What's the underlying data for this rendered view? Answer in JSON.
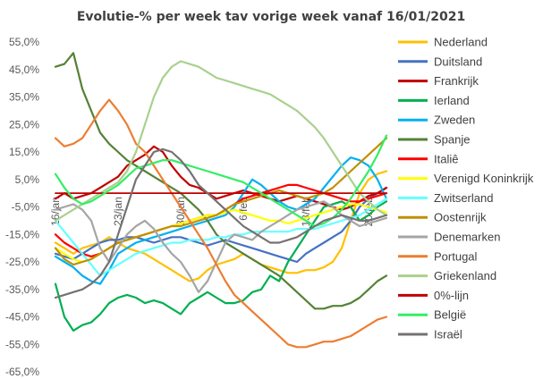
{
  "chart_data": {
    "type": "line",
    "title": "Evolutie-% per week tav vorige week vanaf 16/01/2021",
    "ylim": [
      -65,
      55
    ],
    "y_ticks": [
      55,
      45,
      35,
      25,
      15,
      5,
      -5,
      -15,
      -25,
      -35,
      -45,
      -55,
      -65
    ],
    "y_tick_labels": [
      "55,0%",
      "45,0%",
      "35,0%",
      "25,0%",
      "15,0%",
      "5,0%",
      "-5,0%",
      "-15,0%",
      "-25,0%",
      "-35,0%",
      "-45,0%",
      "-55,0%",
      "-65,0%"
    ],
    "x": [
      "16/jan",
      "17/jan",
      "18/jan",
      "19/jan",
      "20/jan",
      "21/jan",
      "22/jan",
      "23/jan",
      "24/jan",
      "25/jan",
      "26/jan",
      "27/jan",
      "28/jan",
      "29/jan",
      "30/jan",
      "31/jan",
      "01/feb",
      "02/feb",
      "03/feb",
      "04/feb",
      "05/feb",
      "06/feb",
      "07/feb",
      "08/feb",
      "09/feb",
      "10/feb",
      "11/feb",
      "12/feb",
      "13/feb",
      "14/feb",
      "15/feb",
      "16/feb",
      "17/feb",
      "18/feb",
      "19/feb",
      "20/feb",
      "21/feb",
      "22/feb"
    ],
    "x_tick_labels": [
      {
        "index": 0,
        "label": "16/jan"
      },
      {
        "index": 7,
        "label": "23/jan"
      },
      {
        "index": 14,
        "label": "30/jan"
      },
      {
        "index": 21,
        "label": "6/feb"
      },
      {
        "index": 28,
        "label": "13/feb"
      },
      {
        "index": 35,
        "label": "20/feb"
      }
    ],
    "grid": false,
    "legend_position": "right",
    "series": [
      {
        "name": "Nederland",
        "color": "#FFC000",
        "values": [
          -18,
          -20,
          -22,
          -20,
          -19,
          -18,
          -16,
          -18,
          -20,
          -21,
          -22,
          -24,
          -26,
          -28,
          -30,
          -32,
          -31,
          -28,
          -26,
          -25,
          -24,
          -22,
          -24,
          -26,
          -27,
          -28,
          -29,
          -29,
          -28,
          -28,
          -27,
          -25,
          -20,
          -10,
          0,
          5,
          7,
          8
        ]
      },
      {
        "name": "Duitsland",
        "color": "#4472C4",
        "values": [
          -22,
          -23,
          -24,
          -22,
          -20,
          -18,
          -17,
          -17,
          -16,
          -16,
          -17,
          -18,
          -17,
          -16,
          -16,
          -17,
          -18,
          -19,
          -18,
          -17,
          -18,
          -19,
          -20,
          -21,
          -22,
          -23,
          -24,
          -25,
          -22,
          -20,
          -18,
          -16,
          -14,
          -10,
          -5,
          -2,
          0,
          2
        ]
      },
      {
        "name": "Frankrijk",
        "color": "#C00000",
        "values": [
          -2,
          0,
          -2,
          -1,
          0,
          2,
          4,
          6,
          10,
          12,
          14,
          17,
          15,
          10,
          6,
          3,
          2,
          0,
          -2,
          -1,
          0,
          1,
          0,
          -1,
          -2,
          -3,
          -2,
          -1,
          -2,
          -3,
          -4,
          -5,
          -6,
          -5,
          -3,
          -1,
          0,
          2
        ]
      },
      {
        "name": "Ierland",
        "color": "#00B050",
        "values": [
          -33,
          -45,
          -50,
          -48,
          -47,
          -44,
          -40,
          -38,
          -37,
          -38,
          -40,
          -39,
          -40,
          -42,
          -44,
          -40,
          -38,
          -36,
          -38,
          -40,
          -40,
          -39,
          -36,
          -35,
          -30,
          -32,
          -25,
          -20,
          -15,
          -10,
          -5,
          -4,
          -3,
          -5,
          -10,
          -8,
          -5,
          -3
        ]
      },
      {
        "name": "Zweden",
        "color": "#00B0F0",
        "values": [
          -23,
          -25,
          -27,
          -30,
          -32,
          -33,
          -28,
          -22,
          -20,
          -18,
          -17,
          -16,
          -15,
          -14,
          -13,
          -12,
          -11,
          -10,
          -9,
          -8,
          -5,
          0,
          5,
          3,
          0,
          -3,
          -5,
          -6,
          -4,
          -2,
          2,
          6,
          10,
          13,
          12,
          10,
          5,
          -2
        ]
      },
      {
        "name": "Spanje",
        "color": "#548235",
        "values": [
          46,
          47,
          51,
          38,
          30,
          22,
          18,
          15,
          12,
          10,
          8,
          6,
          4,
          2,
          0,
          -3,
          -6,
          -10,
          -15,
          -18,
          -20,
          -22,
          -24,
          -26,
          -28,
          -30,
          -33,
          -36,
          -39,
          -42,
          -42,
          -41,
          -41,
          -40,
          -38,
          -35,
          -32,
          -30
        ]
      },
      {
        "name": "Italiê",
        "color": "#FF0000",
        "values": [
          -15,
          -18,
          -20,
          -22,
          -23,
          -22,
          -20,
          -18,
          -17,
          -16,
          -15,
          -14,
          -13,
          -12,
          -11,
          -10,
          -9,
          -8,
          -8,
          -6,
          -4,
          -2,
          -1,
          0,
          1,
          2,
          3,
          3,
          2,
          1,
          0,
          -1,
          -2,
          -3,
          -3,
          -2,
          -1,
          0
        ]
      },
      {
        "name": "Verenigd Koninkrijk",
        "color": "#FFFF00",
        "values": [
          -20,
          -22,
          -24,
          -25,
          -24,
          -22,
          -20,
          -18,
          -17,
          -16,
          -15,
          -14,
          -13,
          -12,
          -11,
          -10,
          -9,
          -8,
          -8,
          -7,
          -6,
          -7,
          -8,
          -9,
          -10,
          -10,
          -11,
          -10,
          -9,
          -8,
          -7,
          -6,
          -5,
          -4,
          -4,
          -5,
          -6,
          -7
        ]
      },
      {
        "name": "Zwitserland",
        "color": "#66FFFF",
        "values": [
          -10,
          -14,
          -18,
          -22,
          -26,
          -30,
          -28,
          -26,
          -24,
          -22,
          -21,
          -20,
          -19,
          -18,
          -18,
          -17,
          -17,
          -17,
          -16,
          -16,
          -15,
          -15,
          -14,
          -14,
          -14,
          -14,
          -14,
          -13,
          -13,
          -13,
          -12,
          -11,
          -10,
          -9,
          -8,
          -6,
          -4,
          -2
        ]
      },
      {
        "name": "Oostenrijk",
        "color": "#BF9000",
        "values": [
          -20,
          -24,
          -26,
          -25,
          -24,
          -22,
          -20,
          -18,
          -17,
          -16,
          -15,
          -14,
          -13,
          -12,
          -12,
          -11,
          -10,
          -9,
          -8,
          -6,
          -4,
          -3,
          -2,
          -1,
          0,
          1,
          0,
          -1,
          -2,
          -1,
          0,
          2,
          5,
          8,
          11,
          14,
          17,
          20
        ]
      },
      {
        "name": "Denemarken",
        "color": "#A5A5A5",
        "values": [
          -6,
          -5,
          -4,
          -6,
          -10,
          -20,
          -25,
          -20,
          -15,
          -12,
          -10,
          -13,
          -18,
          -22,
          -25,
          -30,
          -36,
          -32,
          -25,
          -18,
          -15,
          -16,
          -17,
          -14,
          -12,
          -10,
          -8,
          -6,
          -5,
          -4,
          -3,
          -5,
          -8,
          -10,
          -12,
          -11,
          -10,
          -9
        ]
      },
      {
        "name": "Portugal",
        "color": "#ED7D31",
        "values": [
          20,
          17,
          18,
          20,
          25,
          30,
          34,
          30,
          25,
          18,
          15,
          10,
          5,
          0,
          -5,
          -10,
          -15,
          -20,
          -26,
          -32,
          -37,
          -40,
          -43,
          -46,
          -49,
          -52,
          -55,
          -56,
          -56,
          -55,
          -54,
          -54,
          -53,
          -52,
          -50,
          -48,
          -46,
          -45
        ]
      },
      {
        "name": "Griekenland",
        "color": "#A9D18E",
        "values": [
          -10,
          -8,
          -6,
          -4,
          -2,
          0,
          2,
          4,
          8,
          15,
          25,
          35,
          42,
          46,
          48,
          47,
          46,
          44,
          42,
          41,
          40,
          39,
          38,
          37,
          36,
          34,
          32,
          30,
          27,
          24,
          20,
          15,
          10,
          5,
          0,
          -3,
          -6,
          -8
        ]
      },
      {
        "name": "0%-lijn",
        "color": "#C00000",
        "values": [
          0,
          0,
          0,
          0,
          0,
          0,
          0,
          0,
          0,
          0,
          0,
          0,
          0,
          0,
          0,
          0,
          0,
          0,
          0,
          0,
          0,
          0,
          0,
          0,
          0,
          0,
          0,
          0,
          0,
          0,
          0,
          0,
          0,
          0,
          0,
          0,
          0,
          0
        ]
      },
      {
        "name": "België",
        "color": "#33EE66",
        "values": [
          7,
          2,
          -2,
          -4,
          -3,
          -1,
          1,
          3,
          6,
          9,
          10,
          11,
          12,
          12,
          11,
          10,
          9,
          8,
          7,
          6,
          5,
          4,
          2,
          0,
          -2,
          -4,
          -6,
          -8,
          -10,
          -12,
          -11,
          -9,
          -6,
          -2,
          3,
          8,
          14,
          21
        ]
      },
      {
        "name": "Israël",
        "color": "#767171",
        "values": [
          -38,
          -37,
          -36,
          -35,
          -33,
          -30,
          -25,
          -15,
          -5,
          5,
          10,
          15,
          16,
          15,
          12,
          8,
          3,
          0,
          -3,
          -6,
          -9,
          -12,
          -14,
          -16,
          -18,
          -18,
          -17,
          -16,
          -14,
          -12,
          -10,
          -9,
          -8,
          -9,
          -10,
          -10,
          -9,
          -8
        ]
      }
    ]
  }
}
